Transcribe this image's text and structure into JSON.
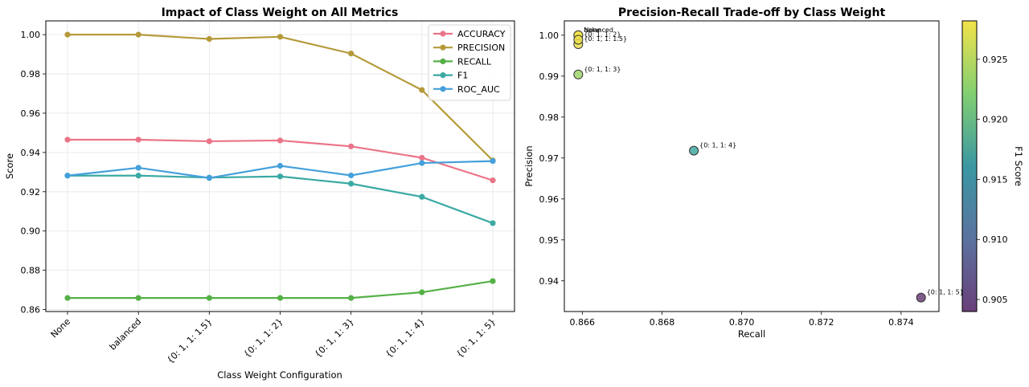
{
  "chart_data": [
    {
      "type": "line",
      "title": "Impact of Class Weight on All Metrics",
      "xlabel": "Class Weight Configuration",
      "ylabel": "Score",
      "ylim": [
        0.859,
        1.007
      ],
      "yticks": [
        "0.86",
        "0.88",
        "0.90",
        "0.92",
        "0.94",
        "0.96",
        "0.98",
        "1.00"
      ],
      "grid": true,
      "legend_position": "top-right",
      "categories": [
        "None",
        "balanced",
        "{0: 1, 1: 1.5}",
        "{0: 1, 1: 2}",
        "{0: 1, 1: 3}",
        "{0: 1, 1: 4}",
        "{0: 1, 1: 5}"
      ],
      "series": [
        {
          "name": "ACCURACY",
          "color": "#ea7488",
          "values": [
            0.9465,
            0.9465,
            0.9457,
            0.9461,
            0.9431,
            0.9373,
            0.9258
          ]
        },
        {
          "name": "PRECISION",
          "color": "#b59a3a",
          "values": [
            1.0,
            1.0,
            0.9978,
            0.9989,
            0.9904,
            0.9718,
            0.9359
          ]
        },
        {
          "name": "RECALL",
          "color": "#55b046",
          "values": [
            0.8659,
            0.8659,
            0.8659,
            0.8659,
            0.8659,
            0.8688,
            0.8745
          ]
        },
        {
          "name": "F1",
          "color": "#3aaaa3",
          "values": [
            0.9282,
            0.9282,
            0.9272,
            0.9278,
            0.9241,
            0.9174,
            0.904
          ]
        },
        {
          "name": "ROC_AUC",
          "color": "#44a0db",
          "values": [
            0.9282,
            0.9322,
            0.927,
            0.9332,
            0.9283,
            0.9346,
            0.9356
          ]
        }
      ]
    },
    {
      "type": "scatter",
      "title": "Precision-Recall Trade-off by Class Weight",
      "xlabel": "Recall",
      "ylabel": "Precision",
      "xlim": [
        0.86555,
        0.87495
      ],
      "ylim": [
        0.9325,
        1.0035
      ],
      "xticks": [
        "0.866",
        "0.868",
        "0.870",
        "0.872",
        "0.874"
      ],
      "yticks": [
        "0.94",
        "0.95",
        "0.96",
        "0.97",
        "0.98",
        "0.99",
        "1.00"
      ],
      "grid": false,
      "colorbar": {
        "label": "F1 Score",
        "range": [
          0.904,
          0.9282
        ],
        "ticks": [
          "0.905",
          "0.910",
          "0.915",
          "0.920",
          "0.925"
        ]
      },
      "points": [
        {
          "label": "None",
          "recall": 0.8659,
          "precision": 1.0,
          "f1": 0.9282,
          "color": "#f3e24a"
        },
        {
          "label": "balanced",
          "recall": 0.8659,
          "precision": 1.0,
          "f1": 0.9282,
          "color": "#f3e24a"
        },
        {
          "label": "{0: 1, 1: 1.5}",
          "recall": 0.8659,
          "precision": 0.9978,
          "f1": 0.9272,
          "color": "#e9e04f"
        },
        {
          "label": "{0: 1, 1: 2}",
          "recall": 0.8659,
          "precision": 0.9989,
          "f1": 0.9278,
          "color": "#eee04c"
        },
        {
          "label": "{0: 1, 1: 3}",
          "recall": 0.8659,
          "precision": 0.9904,
          "f1": 0.9241,
          "color": "#9fd56c"
        },
        {
          "label": "{0: 1, 1: 4}",
          "recall": 0.8688,
          "precision": 0.9718,
          "f1": 0.9174,
          "color": "#42a8a0"
        },
        {
          "label": "{0: 1, 1: 5}",
          "recall": 0.8745,
          "precision": 0.9359,
          "f1": 0.904,
          "color": "#6a3f78"
        }
      ]
    }
  ]
}
